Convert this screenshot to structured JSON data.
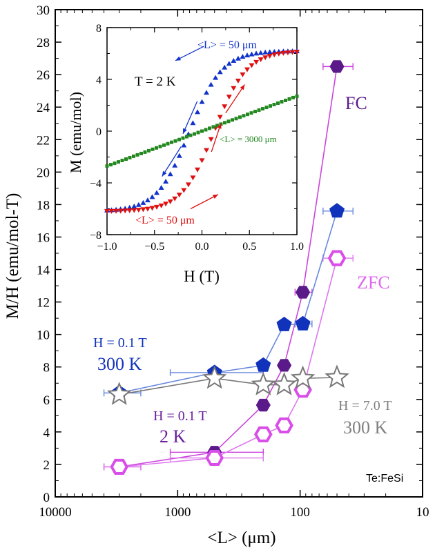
{
  "chart_data": [
    {
      "type": "scatter",
      "xlabel": "<L> (μm)",
      "ylabel": "M/H (emu/mol-T)",
      "x_scale": "log",
      "x_reversed": true,
      "xlim": [
        10000,
        10
      ],
      "ylim": [
        0,
        30
      ],
      "x_ticks": [
        10000,
        1000,
        100,
        10
      ],
      "x_tick_labels": [
        "10000",
        "1000",
        "100",
        "10"
      ],
      "y_ticks": [
        0,
        2,
        4,
        6,
        8,
        10,
        12,
        14,
        16,
        18,
        20,
        22,
        24,
        26,
        28,
        30
      ],
      "y_tick_labels": [
        "0",
        "2",
        "4",
        "6",
        "8",
        "10",
        "12",
        "14",
        "16",
        "18",
        "20",
        "22",
        "24",
        "26",
        "28",
        "30"
      ],
      "series": [
        {
          "name": "FC",
          "color": "#5a1a8a",
          "line_color": "#cc44dd",
          "marker": "filled-hexagon",
          "points": [
            {
              "x": 3000,
              "y": 1.85,
              "xlo": 4000,
              "xhi": 2000
            },
            {
              "x": 500,
              "y": 2.75,
              "xlo": 1150,
              "xhi": 200
            },
            {
              "x": 200,
              "y": 5.65
            },
            {
              "x": 135,
              "y": 8.1
            },
            {
              "x": 95,
              "y": 12.6,
              "xlo": 110,
              "xhi": 80
            },
            {
              "x": 50,
              "y": 26.5,
              "xlo": 65,
              "xhi": 37
            }
          ]
        },
        {
          "name": "ZFC",
          "color": "#d94ee8",
          "line_color": "#dd77ee",
          "marker": "open-hexagon",
          "points": [
            {
              "x": 3000,
              "y": 1.85,
              "xlo": 4000,
              "xhi": 2000
            },
            {
              "x": 500,
              "y": 2.4,
              "xlo": 1150,
              "xhi": 200
            },
            {
              "x": 200,
              "y": 3.85
            },
            {
              "x": 135,
              "y": 4.4
            },
            {
              "x": 95,
              "y": 6.6
            },
            {
              "x": 50,
              "y": 14.7,
              "xlo": 65,
              "xhi": 37
            }
          ]
        },
        {
          "name": "H = 0.1 T 300 K",
          "color": "#1133bb",
          "line_color": "#6688dd",
          "marker": "filled-pentagon",
          "points": [
            {
              "x": 3000,
              "y": 6.4,
              "xlo": 4000,
              "xhi": 2000
            },
            {
              "x": 500,
              "y": 7.65,
              "xlo": 1150,
              "xhi": 200
            },
            {
              "x": 200,
              "y": 8.1
            },
            {
              "x": 135,
              "y": 10.6
            },
            {
              "x": 95,
              "y": 10.65,
              "xlo": 110,
              "xhi": 80
            },
            {
              "x": 50,
              "y": 17.6,
              "xlo": 65,
              "xhi": 37
            }
          ]
        },
        {
          "name": "H = 7.0 T 300 K",
          "color": "#777777",
          "line_color": "#777777",
          "marker": "open-star",
          "points": [
            {
              "x": 3000,
              "y": 6.3
            },
            {
              "x": 500,
              "y": 7.3
            },
            {
              "x": 200,
              "y": 6.9
            },
            {
              "x": 135,
              "y": 6.9
            },
            {
              "x": 95,
              "y": 7.3
            },
            {
              "x": 50,
              "y": 7.35
            }
          ]
        }
      ],
      "annotations": {
        "fc_label": "FC",
        "zfc_label": "ZFC",
        "blue_field": "H = 0.1 T",
        "blue_temp": "300 K",
        "purple_field": "H = 0.1 T",
        "purple_temp": "2 K",
        "gray_field": "H = 7.0 T",
        "gray_temp": "300 K",
        "sample": "Te:FeSi"
      }
    },
    {
      "type": "scatter",
      "xlabel": "H (T)",
      "ylabel": "M (emu/mol)",
      "xlim": [
        -1.0,
        1.0
      ],
      "ylim": [
        -8,
        8
      ],
      "x_ticks": [
        -1.0,
        -0.5,
        0.0,
        0.5,
        1.0
      ],
      "x_tick_labels": [
        "−1.0",
        "−0.5",
        "0.0",
        "0.5",
        "1.0"
      ],
      "y_ticks": [
        -8,
        -4,
        0,
        4,
        8
      ],
      "y_tick_labels": [
        "−8",
        "−4",
        "0",
        "4",
        "8"
      ],
      "series": [
        {
          "name": "<L> = 50 μm (decreasing H)",
          "color": "#1133cc",
          "marker": "triangle-up",
          "ms": 6.2,
          "hc": 0.13
        },
        {
          "name": "<L> = 50 μm (increasing H)",
          "color": "#dd1111",
          "marker": "triangle-down",
          "ms": 6.2,
          "hc": 0.13
        },
        {
          "name": "<L> = 3000 μm",
          "color": "#22881f",
          "marker": "square",
          "slope": 2.7
        }
      ],
      "annotations": {
        "temp": "T = 2 K",
        "top_label": "<L> = 50 μm",
        "bottom_label": "<L> = 50 μm",
        "green_label": "<L> = 3000 μm"
      }
    }
  ]
}
